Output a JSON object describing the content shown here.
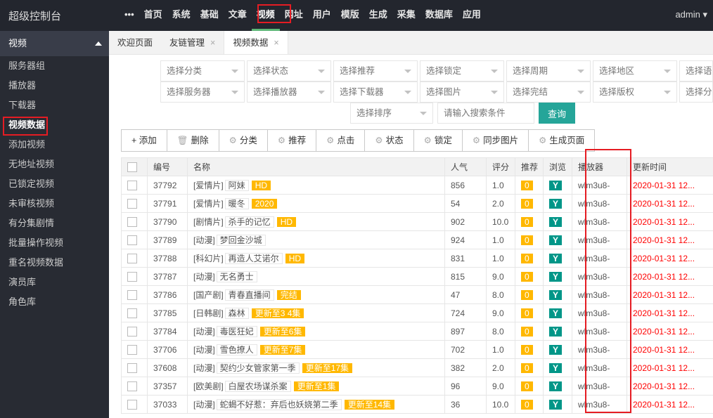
{
  "header": {
    "logo": "超级控制台",
    "nav": [
      "•••",
      "首页",
      "系统",
      "基础",
      "文章",
      "视频",
      "网址",
      "用户",
      "模版",
      "生成",
      "采集",
      "数据库",
      "应用"
    ],
    "active_nav": "视频",
    "user": "admin"
  },
  "sidebar": {
    "group": "视频",
    "items": [
      "服务器组",
      "播放器",
      "下载器",
      "视频数据",
      "添加视频",
      "无地址视频",
      "已锁定视频",
      "未审核视频",
      "有分集剧情",
      "批量操作视频",
      "重名视频数据",
      "演员库",
      "角色库"
    ],
    "active": "视频数据"
  },
  "tabs": [
    "欢迎页面",
    "友链管理",
    "视频数据"
  ],
  "filters": {
    "row1": [
      "选择分类",
      "选择状态",
      "选择推荐",
      "选择锁定",
      "选择周期",
      "选择地区",
      "选择语"
    ],
    "row2": [
      "选择服务器",
      "选择播放器",
      "选择下载器",
      "选择图片",
      "选择完结",
      "选择版权",
      "选择分"
    ],
    "sort": "选择排序",
    "search_placeholder": "请输入搜索条件",
    "query": "查询"
  },
  "toolbar": [
    "+ 添加",
    "删除",
    "分类",
    "推荐",
    "点击",
    "状态",
    "锁定",
    "同步图片",
    "生成页面"
  ],
  "table": {
    "headers": [
      "",
      "编号",
      "名称",
      "人气",
      "评分",
      "推荐",
      "浏览",
      "播放器",
      "更新时间"
    ],
    "rows": [
      [
        "37792",
        "[爱情片]",
        "阿妹",
        "HD",
        "856",
        "1.0",
        "0",
        "Y",
        "wlm3u8-",
        "2020-01-31 12..."
      ],
      [
        "37791",
        "[爱情片]",
        "暖冬",
        "2020",
        "54",
        "2.0",
        "0",
        "Y",
        "wlm3u8-",
        "2020-01-31 12..."
      ],
      [
        "37790",
        "[剧情片]",
        "杀手的记忆",
        "HD",
        "902",
        "10.0",
        "0",
        "Y",
        "wlm3u8-",
        "2020-01-31 12..."
      ],
      [
        "37789",
        "[动漫]",
        "梦回金沙城",
        "",
        "924",
        "1.0",
        "0",
        "Y",
        "wlm3u8-",
        "2020-01-31 12..."
      ],
      [
        "37788",
        "[科幻片]",
        "再造人艾诺尔",
        "HD",
        "831",
        "1.0",
        "0",
        "Y",
        "wlm3u8-",
        "2020-01-31 12..."
      ],
      [
        "37787",
        "[动漫]",
        "无名勇士",
        "",
        "815",
        "9.0",
        "0",
        "Y",
        "wlm3u8-",
        "2020-01-31 12..."
      ],
      [
        "37786",
        "[国产剧]",
        "青春直播间",
        "完结",
        "47",
        "8.0",
        "0",
        "Y",
        "wlm3u8-",
        "2020-01-31 12..."
      ],
      [
        "37785",
        "[日韩剧]",
        "森林",
        "更新至3 4集",
        "724",
        "9.0",
        "0",
        "Y",
        "wlm3u8-",
        "2020-01-31 12..."
      ],
      [
        "37784",
        "[动漫]",
        "毒医狂妃",
        "更新至6集",
        "897",
        "8.0",
        "0",
        "Y",
        "wlm3u8-",
        "2020-01-31 12..."
      ],
      [
        "37706",
        "[动漫]",
        "雪色撩人",
        "更新至7集",
        "702",
        "1.0",
        "0",
        "Y",
        "wlm3u8-",
        "2020-01-31 12..."
      ],
      [
        "37608",
        "[动漫]",
        "契约少女管家第一季",
        "更新至17集",
        "382",
        "2.0",
        "0",
        "Y",
        "wlm3u8-",
        "2020-01-31 12..."
      ],
      [
        "37357",
        "[欧美剧]",
        "白屋农场谋杀案",
        "更新至1集",
        "96",
        "9.0",
        "0",
        "Y",
        "wlm3u8-",
        "2020-01-31 12..."
      ],
      [
        "37033",
        "[动漫]",
        "蛇蝎不好惹：弃后也妖娆第二季",
        "更新至14集",
        "36",
        "10.0",
        "0",
        "Y",
        "wlm3u8-",
        "2020-01-31 12..."
      ]
    ]
  },
  "colors": {
    "header": "#23262e",
    "sidebar": "#282b33",
    "accent": "#009688",
    "badge": "#ffb800",
    "highlight": "#e51c23"
  }
}
